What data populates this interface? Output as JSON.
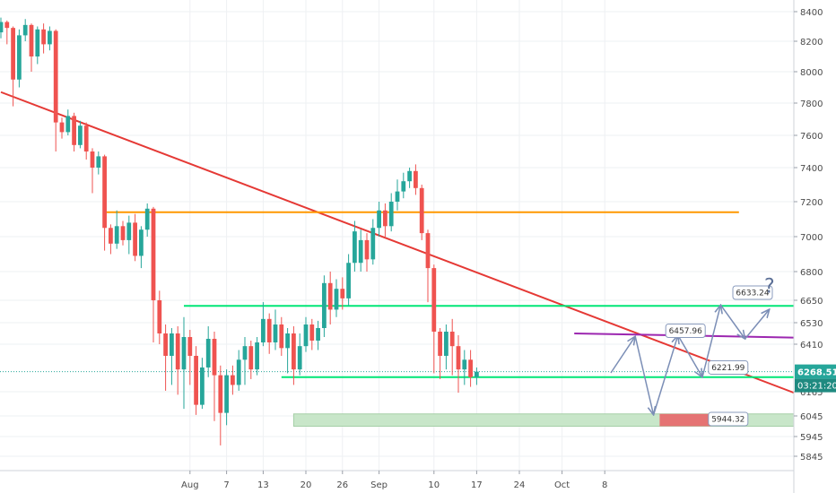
{
  "chart_data": {
    "type": "candlestick",
    "title": "",
    "xlabel": "",
    "ylabel": "",
    "ylim": [
      5790,
      8460
    ],
    "xlim": [
      -31,
      99
    ],
    "grid": true,
    "y_ticks": [
      8400,
      8200,
      8000,
      7800,
      7600,
      7400,
      7200,
      7000,
      6800,
      6650,
      6530,
      6410,
      6165,
      6045,
      5945,
      5845
    ],
    "x_ticks": [
      {
        "x": 0,
        "label": "Aug"
      },
      {
        "x": 6,
        "label": "7"
      },
      {
        "x": 12,
        "label": "13"
      },
      {
        "x": 19,
        "label": "20"
      },
      {
        "x": 25,
        "label": "26"
      },
      {
        "x": 31,
        "label": "Sep"
      },
      {
        "x": 40,
        "label": "10"
      },
      {
        "x": 47,
        "label": "17"
      },
      {
        "x": 54,
        "label": "24"
      },
      {
        "x": 61,
        "label": "Oct"
      },
      {
        "x": 68,
        "label": "8"
      }
    ],
    "current_price": {
      "value": 6268.51,
      "label": "6268.51",
      "countdown": "03:21:20",
      "color": "#26a69a"
    },
    "candles": [
      [
        -31,
        8260,
        8330,
        8360,
        8220
      ],
      [
        -30,
        8330,
        8290,
        8340,
        8180
      ],
      [
        -29,
        8290,
        7950,
        8300,
        7780
      ],
      [
        -28,
        7950,
        8240,
        8280,
        7900
      ],
      [
        -27,
        8240,
        8310,
        8350,
        8200
      ],
      [
        -26,
        8310,
        8100,
        8320,
        8000
      ],
      [
        -25,
        8100,
        8280,
        8300,
        8050
      ],
      [
        -24,
        8280,
        8180,
        8320,
        8120
      ],
      [
        -23,
        8180,
        8270,
        8300,
        8140
      ],
      [
        -22,
        8270,
        7680,
        8280,
        7500
      ],
      [
        -21,
        7680,
        7620,
        7710,
        7580
      ],
      [
        -20,
        7620,
        7720,
        7760,
        7600
      ],
      [
        -19,
        7720,
        7540,
        7740,
        7500
      ],
      [
        -18,
        7540,
        7660,
        7690,
        7520
      ],
      [
        -17,
        7660,
        7500,
        7680,
        7450
      ],
      [
        -16,
        7500,
        7400,
        7520,
        7250
      ],
      [
        -15,
        7400,
        7470,
        7500,
        7360
      ],
      [
        -14,
        7470,
        7050,
        7480,
        6920
      ],
      [
        -13,
        7050,
        6960,
        7070,
        6900
      ],
      [
        -12,
        6960,
        7060,
        7150,
        6930
      ],
      [
        -11,
        7060,
        6980,
        7090,
        6950
      ],
      [
        -10,
        6980,
        7080,
        7120,
        6900
      ],
      [
        -9,
        7080,
        6890,
        7130,
        6860
      ],
      [
        -8,
        6890,
        7040,
        7060,
        6820
      ],
      [
        -7,
        7040,
        7160,
        7190,
        7000
      ],
      [
        -6,
        7160,
        6650,
        7170,
        6420
      ],
      [
        -5,
        6650,
        6470,
        6700,
        6410
      ],
      [
        -4,
        6470,
        6350,
        6520,
        6170
      ],
      [
        -3,
        6350,
        6470,
        6500,
        6200
      ],
      [
        -2,
        6470,
        6280,
        6510,
        6150
      ],
      [
        -1,
        6280,
        6450,
        6560,
        6080
      ],
      [
        0,
        6450,
        6350,
        6490,
        6200
      ],
      [
        1,
        6350,
        6100,
        6400,
        6050
      ],
      [
        2,
        6100,
        6290,
        6340,
        6080
      ],
      [
        3,
        6290,
        6440,
        6510,
        6240
      ],
      [
        4,
        6440,
        6250,
        6480,
        6020
      ],
      [
        5,
        6250,
        6060,
        6300,
        5900
      ],
      [
        6,
        6060,
        6250,
        6280,
        6000
      ],
      [
        7,
        6250,
        6200,
        6300,
        6150
      ],
      [
        8,
        6200,
        6330,
        6380,
        6170
      ],
      [
        9,
        6330,
        6400,
        6450,
        6200
      ],
      [
        10,
        6400,
        6280,
        6430,
        6230
      ],
      [
        11,
        6280,
        6420,
        6450,
        6250
      ],
      [
        12,
        6420,
        6550,
        6640,
        6400
      ],
      [
        13,
        6550,
        6420,
        6580,
        6360
      ],
      [
        14,
        6420,
        6520,
        6600,
        6380
      ],
      [
        15,
        6520,
        6390,
        6560,
        6350
      ],
      [
        16,
        6390,
        6470,
        6500,
        6260
      ],
      [
        17,
        6470,
        6280,
        6510,
        6200
      ],
      [
        18,
        6280,
        6400,
        6470,
        6250
      ],
      [
        19,
        6400,
        6520,
        6560,
        6370
      ],
      [
        20,
        6520,
        6430,
        6550,
        6380
      ],
      [
        21,
        6430,
        6500,
        6540,
        6380
      ],
      [
        22,
        6500,
        6740,
        6780,
        6450
      ],
      [
        23,
        6740,
        6600,
        6800,
        6520
      ],
      [
        24,
        6600,
        6710,
        6760,
        6560
      ],
      [
        25,
        6710,
        6660,
        6770,
        6600
      ],
      [
        26,
        6660,
        6850,
        6900,
        6620
      ],
      [
        27,
        6850,
        7030,
        7090,
        6800
      ],
      [
        28,
        6850,
        6980,
        7040,
        6800
      ],
      [
        29,
        6980,
        6870,
        7020,
        6800
      ],
      [
        30,
        6870,
        7050,
        7100,
        6840
      ],
      [
        31,
        7050,
        7150,
        7200,
        7000
      ],
      [
        32,
        7150,
        7060,
        7190,
        7000
      ],
      [
        33,
        7060,
        7200,
        7250,
        7030
      ],
      [
        34,
        7200,
        7260,
        7330,
        7150
      ],
      [
        35,
        7260,
        7320,
        7370,
        7220
      ],
      [
        36,
        7320,
        7380,
        7400,
        7280
      ],
      [
        37,
        7380,
        7280,
        7420,
        7240
      ],
      [
        38,
        7280,
        7020,
        7300,
        6980
      ],
      [
        39,
        7020,
        6820,
        7040,
        6640
      ],
      [
        40,
        6820,
        6480,
        6840,
        6260
      ],
      [
        41,
        6480,
        6350,
        6500,
        6230
      ],
      [
        42,
        6350,
        6480,
        6520,
        6280
      ],
      [
        43,
        6480,
        6400,
        6550,
        6250
      ],
      [
        44,
        6400,
        6280,
        6460,
        6160
      ],
      [
        45,
        6280,
        6330,
        6380,
        6200
      ],
      [
        46,
        6330,
        6240,
        6380,
        6190
      ],
      [
        47,
        6240,
        6268.51,
        6290,
        6200
      ]
    ],
    "trend_lines": [
      {
        "x1": -31,
        "y1": 7870,
        "x2": 99,
        "y2": 6160,
        "color": "#e53935"
      },
      {
        "x1": -14,
        "y1": 7140,
        "x2": 90,
        "y2": 7140,
        "color": "#ff9800"
      },
      {
        "x1": -1,
        "y1": 6620,
        "x2": 99,
        "y2": 6620,
        "color": "#00e676"
      },
      {
        "x1": 15,
        "y1": 6240,
        "x2": 99,
        "y2": 6240,
        "color": "#00e676"
      },
      {
        "x1": 63,
        "y1": 6470,
        "x2": 110,
        "y2": 6440,
        "color": "#9c27b0"
      }
    ],
    "zone": {
      "x1": 17,
      "x2": 112,
      "y1": 6055,
      "y2": 5995,
      "color": "#c8e6c9"
    },
    "red_block": {
      "x1": 77,
      "x2": 86,
      "y1": 6055,
      "y2": 5995,
      "color": "#e57373"
    },
    "projection_path": [
      [
        69,
        6262
      ],
      [
        73,
        6454
      ],
      [
        76,
        6050
      ],
      [
        80,
        6460
      ],
      [
        84,
        6240
      ],
      [
        87,
        6625
      ],
      [
        91,
        6440
      ],
      [
        95,
        6602
      ]
    ],
    "callouts": [
      {
        "label": "6457.96",
        "x": 78,
        "y": 6485
      },
      {
        "label": "6221.99",
        "x": 85,
        "y": 6290
      },
      {
        "label": "6633.24",
        "x": 89,
        "y": 6690
      },
      {
        "label": "5944.32",
        "x": 85,
        "y": 6030
      }
    ],
    "question_mark": {
      "label": "?",
      "x": 95,
      "y": 6690
    }
  }
}
